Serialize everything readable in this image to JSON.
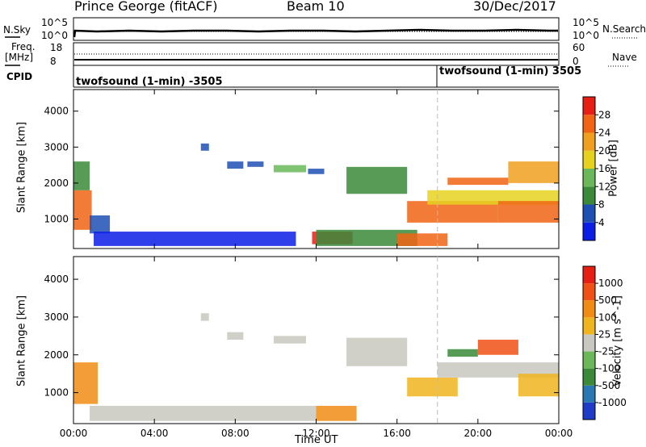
{
  "header": {
    "title": "Prince George (fitACF)",
    "beam": "Beam 10",
    "date": "30/Dec/2017"
  },
  "status_panels": {
    "noise": {
      "left_label": "N.Sky",
      "right_label": "N.Search",
      "left_ticks": [
        "10^5",
        "10^0"
      ],
      "right_ticks": [
        "10^5",
        "10^0"
      ]
    },
    "freq": {
      "left_label_1": "Freq.",
      "left_label_2": "[MHz]",
      "left_ticks": [
        "18",
        "8"
      ],
      "right_label": "Nave",
      "right_ticks": [
        "60",
        "0"
      ]
    },
    "cpid": {
      "label": "CPID",
      "segments": [
        {
          "text": "twofsound (1-min) -3505",
          "start_hour": 0
        },
        {
          "text": "twofsound (1-min) 3505",
          "start_hour": 18
        }
      ]
    }
  },
  "chart_data": [
    {
      "type": "heatmap",
      "ylabel": "Slant Range [km]",
      "ylim": [
        180,
        4600
      ],
      "yticks": [
        1000,
        2000,
        3000,
        4000
      ],
      "xlim_hours": [
        0,
        24
      ],
      "xtick_labels": [
        "00:00",
        "04:00",
        "08:00",
        "12:00",
        "16:00",
        "20:00",
        "00:00"
      ],
      "colorbar": {
        "label": "Power [dB]",
        "tick_labels": [
          "4",
          "8",
          "12",
          "16",
          "20",
          "24",
          "28"
        ],
        "colors": [
          "#0a1ee6",
          "#1e50b4",
          "#3a8a3a",
          "#6ab85a",
          "#e6d21e",
          "#f0a01e",
          "#f06414",
          "#e61e14"
        ]
      },
      "regions": [
        {
          "hours": [
            0.0,
            0.9
          ],
          "range_km": [
            700,
            1800
          ],
          "level": 0.85
        },
        {
          "hours": [
            0.0,
            0.8
          ],
          "range_km": [
            1800,
            2600
          ],
          "level": 0.25
        },
        {
          "hours": [
            0.8,
            1.8
          ],
          "range_km": [
            600,
            1100
          ],
          "level": 0.15
        },
        {
          "hours": [
            1.0,
            11.0
          ],
          "range_km": [
            250,
            650
          ],
          "level": 0.1
        },
        {
          "hours": [
            6.3,
            6.7
          ],
          "range_km": [
            2900,
            3100
          ],
          "level": 0.15
        },
        {
          "hours": [
            7.6,
            8.4
          ],
          "range_km": [
            2400,
            2600
          ],
          "level": 0.2
        },
        {
          "hours": [
            8.6,
            9.4
          ],
          "range_km": [
            2450,
            2600
          ],
          "level": 0.2
        },
        {
          "hours": [
            9.9,
            11.5
          ],
          "range_km": [
            2300,
            2500
          ],
          "level": 0.4
        },
        {
          "hours": [
            11.6,
            12.4
          ],
          "range_km": [
            2250,
            2400
          ],
          "level": 0.2
        },
        {
          "hours": [
            11.8,
            13.8
          ],
          "range_km": [
            300,
            650
          ],
          "level": 0.9
        },
        {
          "hours": [
            12.0,
            17.0
          ],
          "range_km": [
            250,
            700
          ],
          "level": 0.3
        },
        {
          "hours": [
            13.5,
            16.5
          ],
          "range_km": [
            1700,
            2450
          ],
          "level": 0.35
        },
        {
          "hours": [
            16.0,
            18.5
          ],
          "range_km": [
            250,
            600
          ],
          "level": 0.8
        },
        {
          "hours": [
            16.5,
            21.0
          ],
          "range_km": [
            900,
            1500
          ],
          "level": 0.75
        },
        {
          "hours": [
            17.5,
            24.0
          ],
          "range_km": [
            1400,
            1800
          ],
          "level": 0.6
        },
        {
          "hours": [
            18.5,
            21.5
          ],
          "range_km": [
            1950,
            2150
          ],
          "level": 0.75
        },
        {
          "hours": [
            21.0,
            24.0
          ],
          "range_km": [
            900,
            1500
          ],
          "level": 0.85
        },
        {
          "hours": [
            21.5,
            24.0
          ],
          "range_km": [
            2000,
            2600
          ],
          "level": 0.65
        }
      ]
    },
    {
      "type": "heatmap",
      "ylabel": "Slant Range [km]",
      "xlabel": "Time UT",
      "ylim": [
        180,
        4600
      ],
      "yticks": [
        1000,
        2000,
        3000,
        4000
      ],
      "xlim_hours": [
        0,
        24
      ],
      "xtick_labels": [
        "00:00",
        "04:00",
        "08:00",
        "12:00",
        "16:00",
        "20:00",
        "00:00"
      ],
      "colorbar": {
        "label": "Velocity [m s^-1]",
        "tick_labels": [
          "1000",
          "500",
          "100",
          "25",
          "-25",
          "-100",
          "-500",
          "-1000"
        ],
        "colors": [
          "#1e3cc8",
          "#2878b4",
          "#3a8a3a",
          "#6ab85a",
          "#c8c8c0",
          "#f0b41e",
          "#f08c14",
          "#f05014",
          "#e61e14"
        ]
      },
      "regions": [
        {
          "hours": [
            0.0,
            1.2
          ],
          "range_km": [
            700,
            1800
          ],
          "level": 0.75
        },
        {
          "hours": [
            0.8,
            12.0
          ],
          "range_km": [
            250,
            650
          ],
          "level": 0.45
        },
        {
          "hours": [
            6.3,
            6.7
          ],
          "range_km": [
            2900,
            3100
          ],
          "level": 0.45
        },
        {
          "hours": [
            7.6,
            8.4
          ],
          "range_km": [
            2400,
            2600
          ],
          "level": 0.45
        },
        {
          "hours": [
            9.9,
            11.5
          ],
          "range_km": [
            2300,
            2500
          ],
          "level": 0.45
        },
        {
          "hours": [
            12.0,
            14.0
          ],
          "range_km": [
            250,
            650
          ],
          "level": 0.7
        },
        {
          "hours": [
            13.5,
            16.5
          ],
          "range_km": [
            1700,
            2450
          ],
          "level": 0.45
        },
        {
          "hours": [
            16.5,
            19.0
          ],
          "range_km": [
            900,
            1400
          ],
          "level": 0.6
        },
        {
          "hours": [
            18.0,
            24.0
          ],
          "range_km": [
            1400,
            1800
          ],
          "level": 0.45
        },
        {
          "hours": [
            18.5,
            20.0
          ],
          "range_km": [
            1950,
            2150
          ],
          "level": 0.25
        },
        {
          "hours": [
            20.0,
            22.0
          ],
          "range_km": [
            2000,
            2400
          ],
          "level": 0.85
        },
        {
          "hours": [
            22.0,
            24.0
          ],
          "range_km": [
            900,
            1500
          ],
          "level": 0.6
        }
      ]
    }
  ]
}
